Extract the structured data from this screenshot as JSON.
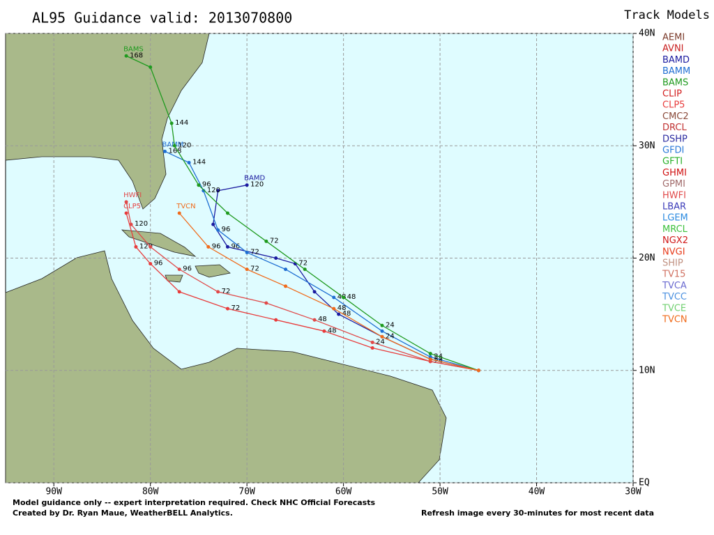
{
  "chart_data": {
    "type": "track-map",
    "title": "AL95   Guidance valid: 2013070800",
    "legend_title": "Track Models",
    "xlim": [
      -95,
      -30
    ],
    "ylim": [
      0,
      40
    ],
    "xticks": [
      {
        "value": -90,
        "label": "90W"
      },
      {
        "value": -80,
        "label": "80W"
      },
      {
        "value": -70,
        "label": "70W"
      },
      {
        "value": -60,
        "label": "60W"
      },
      {
        "value": -50,
        "label": "50W"
      },
      {
        "value": -40,
        "label": "40W"
      },
      {
        "value": -30,
        "label": "30W"
      }
    ],
    "yticks": [
      {
        "value": 0,
        "label": "EQ"
      },
      {
        "value": 10,
        "label": "10N"
      },
      {
        "value": 20,
        "label": "20N"
      },
      {
        "value": 30,
        "label": "30N"
      },
      {
        "value": 40,
        "label": "40N"
      }
    ],
    "grid": true,
    "series": [
      {
        "name": "AEMI",
        "color": "#7a3a2a"
      },
      {
        "name": "AVNI",
        "color": "#c81e1e"
      },
      {
        "name": "BAMD",
        "color": "#1a1aa0",
        "lon": [
          -46,
          -51,
          -56,
          -60.5,
          -63,
          -65,
          -67,
          -72,
          -73.5,
          -73,
          -70
        ],
        "lat": [
          10,
          11,
          13,
          15,
          17,
          19.5,
          20,
          21,
          23,
          26,
          26.5
        ],
        "labels": [
          null,
          "24",
          null,
          "48",
          null,
          "72",
          null,
          "96",
          null,
          null,
          "120"
        ]
      },
      {
        "name": "BAMM",
        "color": "#1e6ed2",
        "lon": [
          -46,
          -51,
          -56,
          -61,
          -66,
          -70,
          -73,
          -74.5,
          -76,
          -78.5
        ],
        "lat": [
          10,
          11.2,
          13.5,
          16.5,
          19,
          20.5,
          22.5,
          26,
          28.5,
          29.5
        ],
        "labels": [
          null,
          "24",
          null,
          "48",
          null,
          "72",
          "96",
          "120",
          "144",
          "168"
        ]
      },
      {
        "name": "BAMS",
        "color": "#1e9a1e",
        "lon": [
          -46,
          -51,
          -56,
          -60,
          -64,
          -68,
          -72,
          -75,
          -77.5,
          -77.8,
          -80,
          -82.5
        ],
        "lat": [
          10,
          11.5,
          14,
          16.5,
          19,
          21.5,
          24,
          26.5,
          30,
          32,
          37,
          38
        ],
        "labels": [
          null,
          null,
          "24",
          "48",
          null,
          "72",
          null,
          "96",
          "120",
          "144",
          null,
          "168"
        ]
      },
      {
        "name": "CLIP",
        "color": "#d21e1e"
      },
      {
        "name": "CLP5",
        "color": "#e83c3c",
        "lon": [
          -46,
          -51,
          -57,
          -62,
          -67,
          -72,
          -77,
          -80,
          -81.5,
          -82.5
        ],
        "lat": [
          10,
          10.8,
          12,
          13.5,
          14.5,
          15.5,
          17,
          19.5,
          21,
          24
        ],
        "labels": [
          null,
          "24",
          null,
          "48",
          null,
          "72",
          null,
          "96",
          "120",
          null
        ]
      },
      {
        "name": "CMC2",
        "color": "#8a4a3a"
      },
      {
        "name": "DRCL",
        "color": "#c03030"
      },
      {
        "name": "DSHP",
        "color": "#2a2aa0"
      },
      {
        "name": "GFDI",
        "color": "#2a7ad8"
      },
      {
        "name": "GFTI",
        "color": "#28b028"
      },
      {
        "name": "GHMI",
        "color": "#d01010"
      },
      {
        "name": "GPMI",
        "color": "#a06a6a"
      },
      {
        "name": "HWFI",
        "color": "#e04848",
        "lon": [
          -46,
          -51,
          -57,
          -63,
          -68,
          -73,
          -77,
          -80,
          -82,
          -82.5
        ],
        "lat": [
          10,
          10.8,
          12.5,
          14.5,
          16,
          17,
          19,
          21,
          23,
          25
        ],
        "labels": [
          null,
          null,
          "24",
          "48",
          null,
          "72",
          "96",
          null,
          "120",
          null
        ]
      },
      {
        "name": "LBAR",
        "color": "#3a3ab8"
      },
      {
        "name": "LGEM",
        "color": "#2a8ae0"
      },
      {
        "name": "MRCL",
        "color": "#3cc03c"
      },
      {
        "name": "NGX2",
        "color": "#d01818"
      },
      {
        "name": "NVGI",
        "color": "#e83a1a"
      },
      {
        "name": "SHIP",
        "color": "#c09080"
      },
      {
        "name": "TV15",
        "color": "#d07060"
      },
      {
        "name": "TVCA",
        "color": "#6a6ad0"
      },
      {
        "name": "TVCC",
        "color": "#4a90e0"
      },
      {
        "name": "TVCE",
        "color": "#70d070"
      },
      {
        "name": "TVCN",
        "color": "#f06a1a",
        "lon": [
          -46,
          -51,
          -56,
          -61,
          -66,
          -70,
          -74,
          -77
        ],
        "lat": [
          10,
          11,
          13,
          15.5,
          17.5,
          19,
          21,
          24
        ],
        "labels": [
          null,
          null,
          "24",
          "48",
          null,
          "72",
          "96",
          null
        ]
      }
    ],
    "footer_left": [
      "Model guidance only -- expert interpretation required.  Check NHC Official Forecasts",
      "Created by Dr. Ryan Maue, WeatherBELL Analytics."
    ],
    "footer_right": "Refresh image every 30-minutes for most recent data"
  }
}
